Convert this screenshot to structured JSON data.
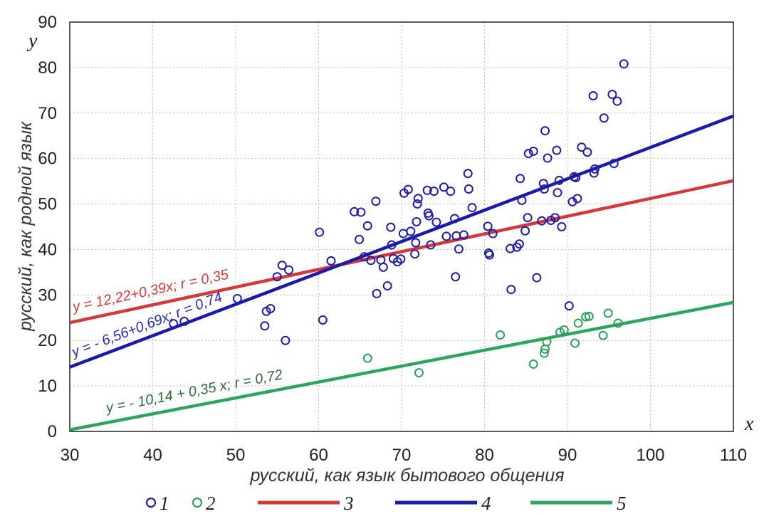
{
  "chart_data": {
    "type": "scatter",
    "xlabel": "русский, как язык бытового общения",
    "ylabel": "русский, как родной язык",
    "x_axis_letter": "x",
    "y_axis_letter": "y",
    "xlim": [
      30,
      110
    ],
    "ylim": [
      0,
      90
    ],
    "x_ticks": [
      30,
      40,
      50,
      60,
      70,
      80,
      90,
      100,
      110
    ],
    "y_ticks": [
      0,
      10,
      20,
      30,
      40,
      50,
      60,
      70,
      80,
      90
    ],
    "grid": true,
    "legend_position": "bottom",
    "series": [
      {
        "name": "1",
        "kind": "scatter",
        "marker": "open-circle",
        "color": "#1f1f9e",
        "points": [
          [
            42.5,
            23.7
          ],
          [
            43.8,
            24.2
          ],
          [
            50.2,
            29.2
          ],
          [
            53.5,
            23.2
          ],
          [
            53.7,
            26.4
          ],
          [
            54.2,
            27
          ],
          [
            55,
            34
          ],
          [
            55.6,
            36.5
          ],
          [
            56,
            20
          ],
          [
            56.4,
            35.5
          ],
          [
            60.1,
            43.8
          ],
          [
            60.5,
            24.5
          ],
          [
            61.5,
            37.5
          ],
          [
            64.3,
            48.3
          ],
          [
            64.9,
            42.2
          ],
          [
            65.1,
            48.2
          ],
          [
            65.5,
            38.4
          ],
          [
            65.9,
            45.2
          ],
          [
            66.3,
            37.6
          ],
          [
            66.9,
            50.6
          ],
          [
            67,
            30.3
          ],
          [
            67.5,
            37.7
          ],
          [
            67.8,
            36.1
          ],
          [
            68.3,
            32
          ],
          [
            68.7,
            44.9
          ],
          [
            68.8,
            41
          ],
          [
            69,
            38
          ],
          [
            69.5,
            37.3
          ],
          [
            69.9,
            37.9
          ],
          [
            70.2,
            43.5
          ],
          [
            70.3,
            52.4
          ],
          [
            70.8,
            53.2
          ],
          [
            71.1,
            44
          ],
          [
            71.6,
            39
          ],
          [
            71.7,
            41.5
          ],
          [
            71.8,
            46.1
          ],
          [
            71.9,
            50
          ],
          [
            72,
            51.2
          ],
          [
            73.1,
            53
          ],
          [
            73.2,
            48
          ],
          [
            73.3,
            47.4
          ],
          [
            73.5,
            41
          ],
          [
            73.9,
            52.8
          ],
          [
            74.2,
            46
          ],
          [
            75.1,
            53.7
          ],
          [
            75.4,
            42.9
          ],
          [
            75.9,
            52.8
          ],
          [
            76.4,
            46.8
          ],
          [
            76.5,
            34
          ],
          [
            76.6,
            43
          ],
          [
            76.9,
            40.1
          ],
          [
            77.5,
            43.2
          ],
          [
            78,
            56.7
          ],
          [
            78.1,
            53.3
          ],
          [
            78.5,
            49.2
          ],
          [
            80.4,
            45.1
          ],
          [
            80.5,
            39.2
          ],
          [
            80.6,
            38.8
          ],
          [
            81,
            43.5
          ],
          [
            83.1,
            40.2
          ],
          [
            83.2,
            31.2
          ],
          [
            83.9,
            40.5
          ],
          [
            84.2,
            41.2
          ],
          [
            84.3,
            55.6
          ],
          [
            84.5,
            50.8
          ],
          [
            84.9,
            44.1
          ],
          [
            85.2,
            47
          ],
          [
            85.3,
            61.1
          ],
          [
            85.9,
            61.6
          ],
          [
            86.3,
            33.8
          ],
          [
            86.9,
            46.3
          ],
          [
            87.1,
            54.5
          ],
          [
            87.2,
            53.3
          ],
          [
            87.3,
            66.1
          ],
          [
            87.6,
            60.1
          ],
          [
            88,
            46.4
          ],
          [
            88.5,
            47
          ],
          [
            88.7,
            61.8
          ],
          [
            88.8,
            52.5
          ],
          [
            89,
            55.2
          ],
          [
            89.3,
            45
          ],
          [
            90.2,
            27.6
          ],
          [
            90.6,
            50.5
          ],
          [
            90.8,
            56
          ],
          [
            91,
            55.8
          ],
          [
            91.2,
            51.2
          ],
          [
            91.7,
            62.5
          ],
          [
            92.4,
            61.4
          ],
          [
            93.1,
            73.8
          ],
          [
            93.2,
            56.8
          ],
          [
            93.3,
            57.7
          ],
          [
            94.4,
            68.9
          ],
          [
            95.4,
            74.1
          ],
          [
            95.6,
            58.9
          ],
          [
            96,
            72.6
          ],
          [
            96.8,
            80.8
          ]
        ]
      },
      {
        "name": "2",
        "kind": "scatter",
        "marker": "open-circle",
        "color": "#2e9e5a",
        "points": [
          [
            65.9,
            16.1
          ],
          [
            72.1,
            12.9
          ],
          [
            81.9,
            21.2
          ],
          [
            85.9,
            14.8
          ],
          [
            87.2,
            17.2
          ],
          [
            87.3,
            18.1
          ],
          [
            87.5,
            19.7
          ],
          [
            89.1,
            21.8
          ],
          [
            89.6,
            22.3
          ],
          [
            90.9,
            19.4
          ],
          [
            91.3,
            23.8
          ],
          [
            92.2,
            25.2
          ],
          [
            92.6,
            25.3
          ],
          [
            94.3,
            21.1
          ],
          [
            94.9,
            26
          ],
          [
            96.1,
            23.8
          ]
        ]
      },
      {
        "name": "3",
        "kind": "line",
        "color": "#d23a3a",
        "intercept": 12.22,
        "slope": 0.39,
        "equation": "y = 12,22+0,39x; r = 0,35"
      },
      {
        "name": "4",
        "kind": "line",
        "color": "#1a1aa8",
        "intercept": -6.56,
        "slope": 0.69,
        "equation": "y = - 6,56+0,69x; r = 0,74"
      },
      {
        "name": "5",
        "kind": "line",
        "color": "#2ea55f",
        "intercept": -10.14,
        "slope": 0.35,
        "equation": "y = - 10,14 + 0,35 x; r = 0,72"
      }
    ],
    "equation_label_colors": [
      "#d23a3a",
      "#2a2aa6",
      "#2f6a3a"
    ]
  }
}
